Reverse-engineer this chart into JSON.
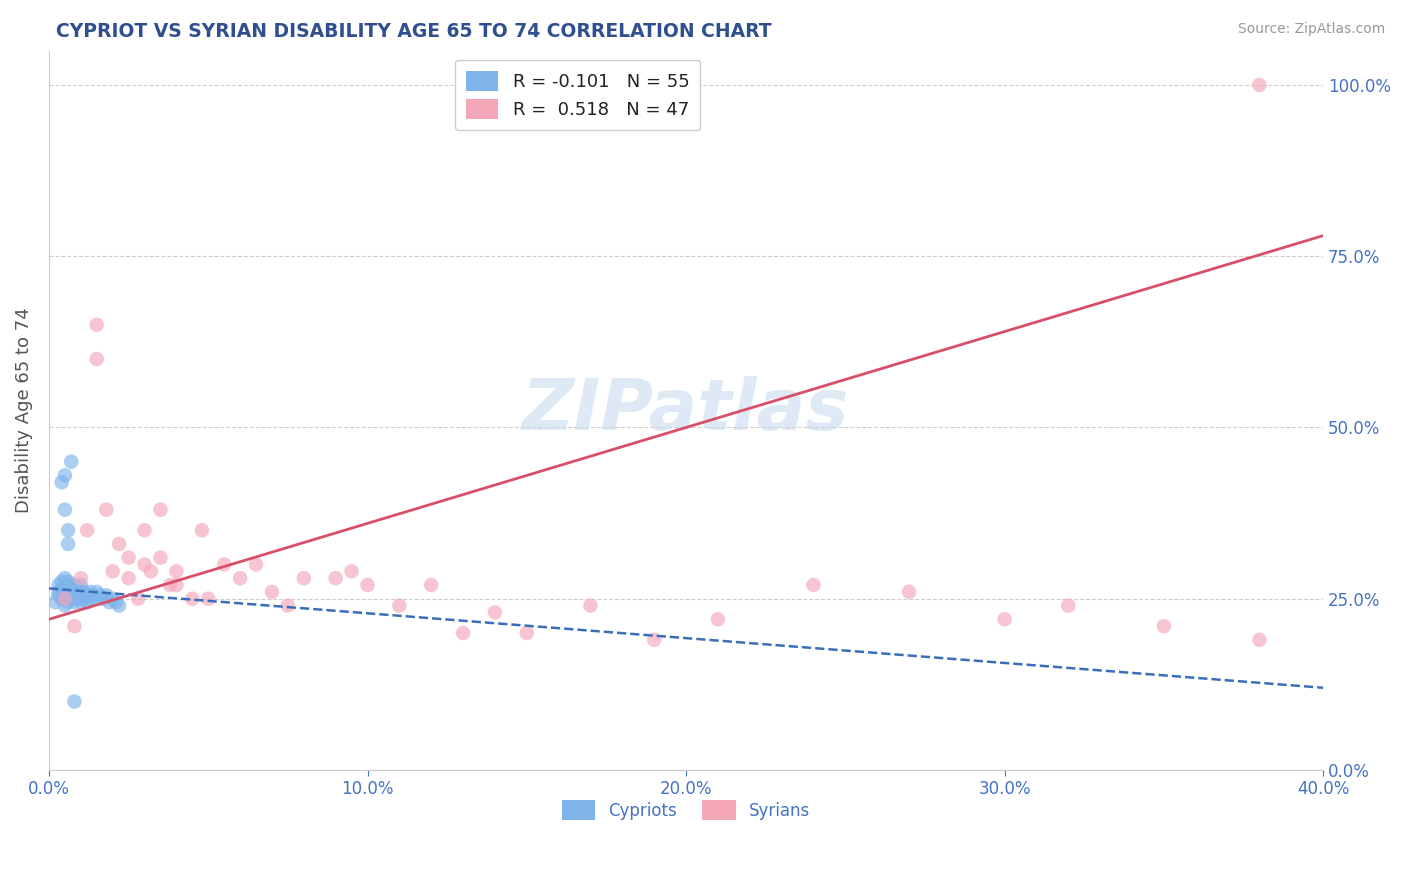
{
  "title": "CYPRIOT VS SYRIAN DISABILITY AGE 65 TO 74 CORRELATION CHART",
  "source": "Source: ZipAtlas.com",
  "ylabel": "Disability Age 65 to 74",
  "xlim": [
    0.0,
    0.4
  ],
  "ylim": [
    0.0,
    1.05
  ],
  "x_ticks": [
    0.0,
    0.1,
    0.2,
    0.3,
    0.4
  ],
  "x_tick_labels": [
    "0.0%",
    "10.0%",
    "20.0%",
    "30.0%",
    "40.0%"
  ],
  "y_tick_labels": [
    "0.0%",
    "25.0%",
    "50.0%",
    "75.0%",
    "100.0%"
  ],
  "y_ticks": [
    0.0,
    0.25,
    0.5,
    0.75,
    1.0
  ],
  "R_cypriot": -0.101,
  "N_cypriot": 55,
  "R_syrian": 0.518,
  "N_syrian": 47,
  "cypriot_color": "#7EB4EA",
  "syrian_color": "#F4A7B9",
  "cypriot_line_color": "#3A6EBB",
  "syrian_line_color": "#D94F6A",
  "watermark": "ZIPatlas",
  "title_color": "#2F4F8F",
  "axis_label_color": "#555555",
  "tick_color": "#4472C4",
  "grid_color": "#BBBBBB",
  "source_color": "#999999",
  "legend_R_color": "#333333",
  "legend_N_color": "#4472C4",
  "cypriot_x": [
    0.002,
    0.003,
    0.003,
    0.003,
    0.004,
    0.004,
    0.004,
    0.005,
    0.005,
    0.005,
    0.005,
    0.005,
    0.005,
    0.005,
    0.006,
    0.006,
    0.006,
    0.006,
    0.007,
    0.007,
    0.007,
    0.007,
    0.008,
    0.008,
    0.008,
    0.009,
    0.009,
    0.009,
    0.01,
    0.01,
    0.01,
    0.01,
    0.011,
    0.011,
    0.012,
    0.012,
    0.013,
    0.013,
    0.014,
    0.015,
    0.015,
    0.016,
    0.017,
    0.018,
    0.019,
    0.02,
    0.021,
    0.022,
    0.004,
    0.005,
    0.005,
    0.006,
    0.006,
    0.007,
    0.008
  ],
  "cypriot_y": [
    0.245,
    0.255,
    0.27,
    0.26,
    0.25,
    0.265,
    0.275,
    0.24,
    0.25,
    0.255,
    0.26,
    0.265,
    0.27,
    0.28,
    0.245,
    0.255,
    0.265,
    0.275,
    0.25,
    0.255,
    0.265,
    0.27,
    0.245,
    0.26,
    0.27,
    0.25,
    0.255,
    0.265,
    0.245,
    0.255,
    0.26,
    0.27,
    0.25,
    0.26,
    0.245,
    0.255,
    0.25,
    0.26,
    0.255,
    0.25,
    0.26,
    0.255,
    0.25,
    0.255,
    0.245,
    0.25,
    0.245,
    0.24,
    0.42,
    0.38,
    0.43,
    0.35,
    0.33,
    0.45,
    0.1
  ],
  "syrian_x": [
    0.005,
    0.008,
    0.01,
    0.012,
    0.015,
    0.015,
    0.018,
    0.02,
    0.022,
    0.025,
    0.025,
    0.028,
    0.03,
    0.03,
    0.032,
    0.035,
    0.035,
    0.038,
    0.04,
    0.04,
    0.045,
    0.048,
    0.05,
    0.055,
    0.06,
    0.065,
    0.07,
    0.075,
    0.08,
    0.09,
    0.095,
    0.1,
    0.11,
    0.12,
    0.13,
    0.14,
    0.15,
    0.17,
    0.19,
    0.21,
    0.24,
    0.27,
    0.3,
    0.32,
    0.35,
    0.38,
    0.38
  ],
  "syrian_y": [
    0.25,
    0.21,
    0.28,
    0.35,
    0.6,
    0.65,
    0.38,
    0.29,
    0.33,
    0.28,
    0.31,
    0.25,
    0.3,
    0.35,
    0.29,
    0.31,
    0.38,
    0.27,
    0.27,
    0.29,
    0.25,
    0.35,
    0.25,
    0.3,
    0.28,
    0.3,
    0.26,
    0.24,
    0.28,
    0.28,
    0.29,
    0.27,
    0.24,
    0.27,
    0.2,
    0.23,
    0.2,
    0.24,
    0.19,
    0.22,
    0.27,
    0.26,
    0.22,
    0.24,
    0.21,
    0.19,
    1.0
  ],
  "syr_line_x0": 0.0,
  "syr_line_y0": 0.22,
  "syr_line_x1": 0.4,
  "syr_line_y1": 0.78,
  "cyp_line_x0": 0.0,
  "cyp_line_y0": 0.265,
  "cyp_line_x1": 0.4,
  "cyp_line_y1": 0.12
}
